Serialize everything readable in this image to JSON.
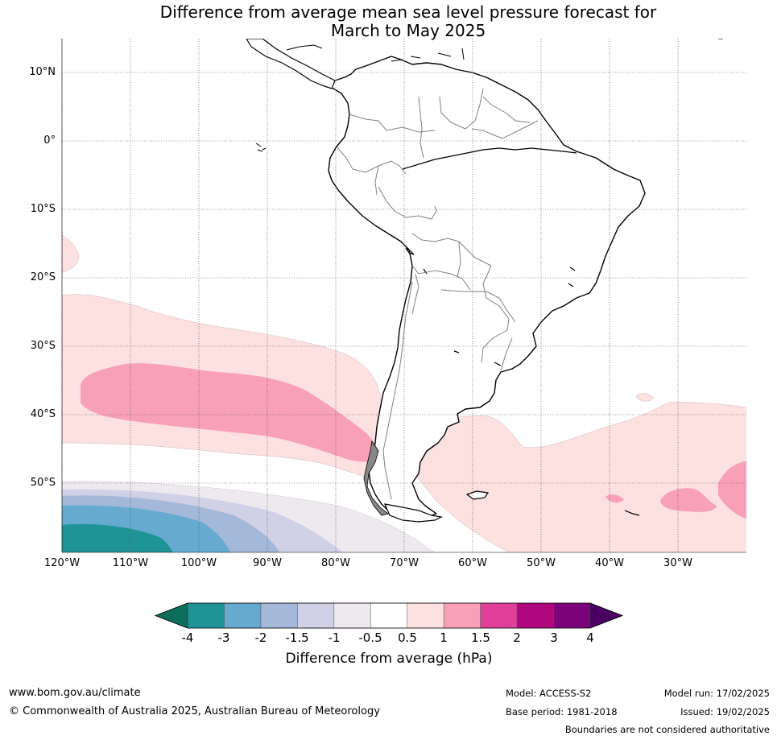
{
  "title": {
    "line1": "Difference from average mean sea level pressure forecast for",
    "line2": "March to May 2025"
  },
  "lat_labels": [
    "10°N",
    "0°",
    "10°S",
    "20°S",
    "30°S",
    "40°S",
    "50°S"
  ],
  "lon_labels": [
    "120°W",
    "110°W",
    "100°W",
    "90°W",
    "80°W",
    "70°W",
    "60°W",
    "50°W",
    "40°W",
    "30°W"
  ],
  "colorbar": {
    "label": "Difference from average (hPa)",
    "ticks": [
      "-4",
      "-3",
      "-2",
      "-1.5",
      "-1",
      "-0.5",
      "0.5",
      "1",
      "1.5",
      "2",
      "3",
      "4"
    ],
    "colors": [
      "#1e9497",
      "#66aacf",
      "#a4b8d9",
      "#d0d0e6",
      "#eee9ee",
      "#ffffff",
      "#fde0e0",
      "#f8a0b8",
      "#e0409a",
      "#b0067e",
      "#7b0278"
    ],
    "under_color": "#0c6f5c",
    "over_color": "#4a0062"
  },
  "colors": {
    "land_outline": "#000000",
    "country_border": "#808080",
    "grid": "#555555"
  },
  "footer": {
    "website": "www.bom.gov.au/climate",
    "copyright": "© Commonwealth of Australia 2025, Australian Bureau of Meteorology",
    "model": "Model: ACCESS-S2",
    "base_period": "Base period: 1981-2018",
    "model_run": "Model run: 17/02/2025",
    "issued": "Issued: 19/02/2025",
    "disclaimer": "Boundaries are not considered authoritative"
  }
}
